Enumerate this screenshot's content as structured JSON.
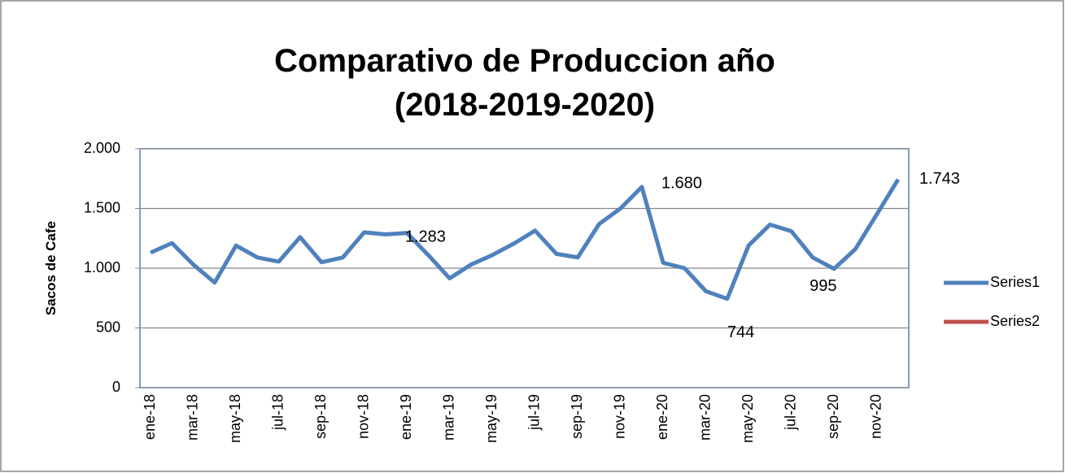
{
  "chart_data": {
    "type": "line",
    "title": [
      "Comparativo de Produccion año",
      "(2018-2019-2020)"
    ],
    "y_label": "Sacos de Cafe",
    "categories": [
      "ene-18",
      null,
      "mar-18",
      null,
      "may-18",
      null,
      "jul-18",
      null,
      "sep-18",
      null,
      "nov-18",
      null,
      "ene-19",
      null,
      "mar-19",
      null,
      "may-19",
      null,
      "jul-19",
      null,
      "sep-19",
      null,
      "nov-19",
      null,
      "ene-20",
      null,
      "mar-20",
      null,
      "may-20",
      null,
      "jul-20",
      null,
      "sep-20",
      null,
      "nov-20",
      null
    ],
    "series": [
      {
        "name": "Series1",
        "color": "#4f81bd",
        "values": [
          1130,
          1210,
          1030,
          880,
          1190,
          1090,
          1055,
          1260,
          1050,
          1090,
          1300,
          1283,
          1295,
          1110,
          915,
          1030,
          1110,
          1205,
          1315,
          1120,
          1090,
          1370,
          1500,
          1680,
          1045,
          1000,
          807,
          744,
          1190,
          1365,
          1310,
          1090,
          995,
          1160,
          1450,
          1743
        ],
        "value_labels": [
          null,
          null,
          null,
          null,
          null,
          null,
          null,
          null,
          null,
          null,
          null,
          "1.283",
          null,
          null,
          null,
          null,
          null,
          null,
          null,
          null,
          null,
          null,
          null,
          "1.680",
          null,
          null,
          null,
          "744",
          null,
          null,
          null,
          null,
          "995",
          null,
          null,
          "1.743"
        ]
      },
      {
        "name": "Series2",
        "color": "#c0504d",
        "values": [
          null,
          null,
          null,
          null,
          null,
          null,
          null,
          null,
          null,
          null,
          null,
          null,
          null,
          null,
          null,
          null,
          null,
          null,
          null,
          null,
          null,
          null,
          null,
          null,
          null,
          null,
          null,
          null,
          null,
          null,
          null,
          null,
          null,
          null,
          null,
          null
        ]
      }
    ],
    "ylim": [
      0,
      2000
    ],
    "yticks": [
      0,
      500,
      {
        "value": 1000,
        "label": "1.000"
      },
      {
        "value": 1500,
        "label": "1.500"
      },
      {
        "value": 2000,
        "label": "2.000"
      }
    ],
    "grid": true,
    "legend": "right"
  }
}
